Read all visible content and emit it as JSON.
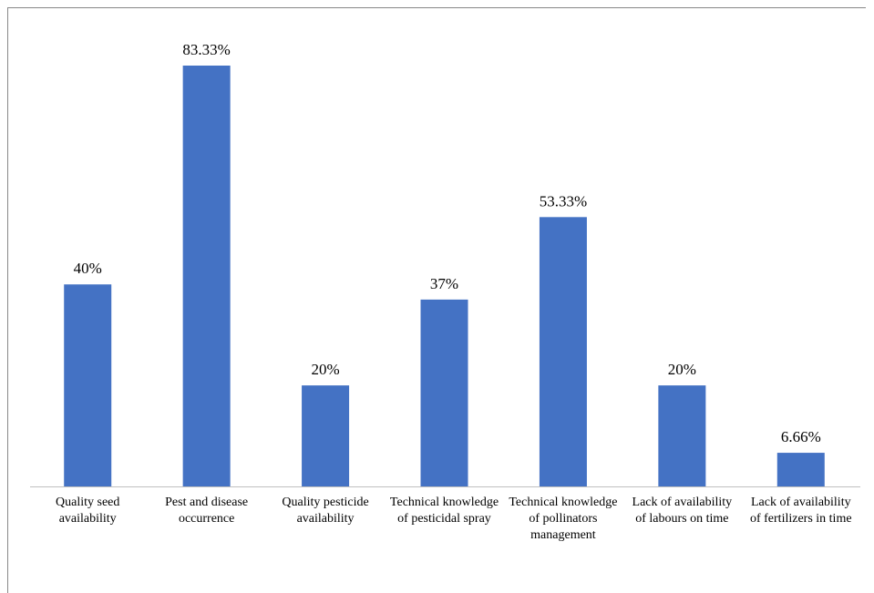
{
  "chart_data": {
    "type": "bar",
    "categories": [
      "Quality seed availability",
      "Pest and disease occurrence",
      "Quality pesticide availability",
      "Technical knowledge of pesticidal spray",
      "Technical knowledge of pollinators management",
      "Lack of availability of labours on time",
      "Lack of availability of fertilizers in time"
    ],
    "values": [
      40,
      83.33,
      20,
      37,
      53.33,
      20,
      6.66
    ],
    "value_labels": [
      "40%",
      "83.33%",
      "20%",
      "37%",
      "53.33%",
      "20%",
      "6.66%"
    ],
    "color": "#4472c4"
  }
}
